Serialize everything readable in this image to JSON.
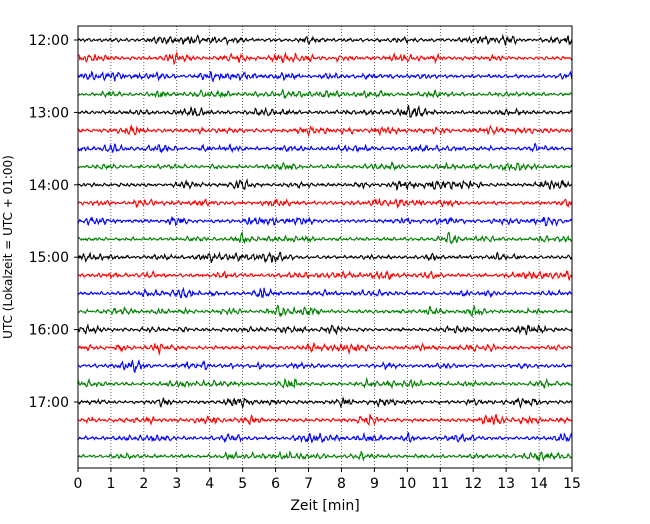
{
  "chart_data": {
    "type": "line",
    "title": "",
    "xlabel": "Zeit  [min]",
    "ylabel": "UTC (Lokalzeit = UTC + 01:00)",
    "xlim": [
      0,
      15
    ],
    "x_ticks": [
      0,
      1,
      2,
      3,
      4,
      5,
      6,
      7,
      8,
      9,
      10,
      11,
      12,
      13,
      14,
      15
    ],
    "x_tick_labels": [
      "0",
      "1",
      "2",
      "3",
      "4",
      "5",
      "6",
      "7",
      "8",
      "9",
      "10",
      "11",
      "12",
      "13",
      "14",
      "15"
    ],
    "y_tick_labels": [
      "12:00",
      "13:00",
      "14:00",
      "15:00",
      "16:00",
      "17:00"
    ],
    "grid": "vertical dotted lines at each minute",
    "legend": "none",
    "colors": [
      "#000000",
      "#ff0000",
      "#0000ff",
      "#008000"
    ],
    "series": [
      {
        "start": "12:00",
        "color": "#000000"
      },
      {
        "start": "12:15",
        "color": "#ff0000"
      },
      {
        "start": "12:30",
        "color": "#0000ff"
      },
      {
        "start": "12:45",
        "color": "#008000"
      },
      {
        "start": "13:00",
        "color": "#000000"
      },
      {
        "start": "13:15",
        "color": "#ff0000"
      },
      {
        "start": "13:30",
        "color": "#0000ff"
      },
      {
        "start": "13:45",
        "color": "#008000"
      },
      {
        "start": "14:00",
        "color": "#000000"
      },
      {
        "start": "14:15",
        "color": "#ff0000"
      },
      {
        "start": "14:30",
        "color": "#0000ff"
      },
      {
        "start": "14:45",
        "color": "#008000"
      },
      {
        "start": "15:00",
        "color": "#000000"
      },
      {
        "start": "15:15",
        "color": "#ff0000"
      },
      {
        "start": "15:30",
        "color": "#0000ff"
      },
      {
        "start": "15:45",
        "color": "#008000"
      },
      {
        "start": "16:00",
        "color": "#000000"
      },
      {
        "start": "16:15",
        "color": "#ff0000"
      },
      {
        "start": "16:30",
        "color": "#0000ff"
      },
      {
        "start": "16:45",
        "color": "#008000"
      },
      {
        "start": "17:00",
        "color": "#000000"
      },
      {
        "start": "17:15",
        "color": "#ff0000"
      },
      {
        "start": "17:30",
        "color": "#0000ff"
      },
      {
        "start": "17:45",
        "color": "#008000"
      }
    ]
  }
}
